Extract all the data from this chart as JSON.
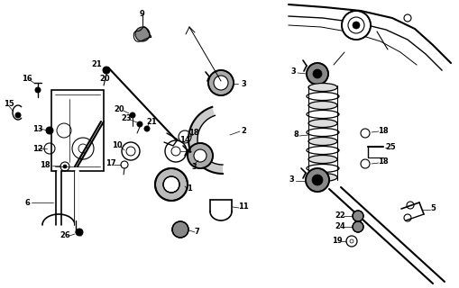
{
  "bg_color": "#ffffff",
  "line_color": "#000000",
  "fig_width": 5.1,
  "fig_height": 3.2,
  "dpi": 100,
  "lw_main": 1.0,
  "lw_thick": 2.0,
  "lw_thin": 0.5,
  "fs_label": 6.0
}
